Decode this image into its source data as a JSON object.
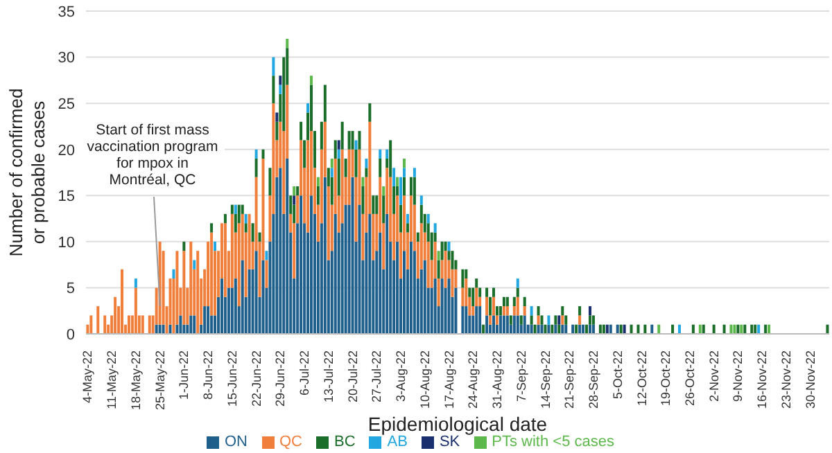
{
  "chart_data": {
    "type": "bar",
    "stacked": true,
    "xlabel": "Epidemiological date",
    "ylabel": "Number of confirmed or probable cases",
    "ylim": [
      0,
      35
    ],
    "yticks": [
      0,
      5,
      10,
      15,
      20,
      25,
      30,
      35
    ],
    "grid": "y",
    "legend": "bottom",
    "annotations": [
      {
        "text": "Start of first mass vaccination program for mpox in Montréal, QC",
        "x": "25-May-22",
        "y": 3
      }
    ],
    "categories": [
      "4-May-22",
      null,
      null,
      null,
      null,
      null,
      null,
      "11-May-22",
      null,
      null,
      null,
      null,
      null,
      null,
      "18-May-22",
      null,
      null,
      null,
      null,
      null,
      null,
      "25-May-22",
      null,
      null,
      null,
      null,
      null,
      null,
      "1-Jun-22",
      null,
      null,
      null,
      null,
      null,
      null,
      "8-Jun-22",
      null,
      null,
      null,
      null,
      null,
      null,
      "15-Jun-22",
      null,
      null,
      null,
      null,
      null,
      null,
      "22-Jun-22",
      null,
      null,
      null,
      null,
      null,
      null,
      "29-Jun-22",
      null,
      null,
      null,
      null,
      null,
      null,
      "6-Jul-22",
      null,
      null,
      null,
      null,
      null,
      null,
      "13-Jul-22",
      null,
      null,
      null,
      null,
      null,
      null,
      "20-Jul-22",
      null,
      null,
      null,
      null,
      null,
      null,
      "27-Jul-22",
      null,
      null,
      null,
      null,
      null,
      null,
      "3-Aug-22",
      null,
      null,
      null,
      null,
      null,
      null,
      "10-Aug-22",
      null,
      null,
      null,
      null,
      null,
      null,
      "17-Aug-22",
      null,
      null,
      null,
      null,
      null,
      null,
      "24-Aug-22",
      null,
      null,
      null,
      null,
      null,
      null,
      "31-Aug-22",
      null,
      null,
      null,
      null,
      null,
      null,
      "7-Sep-22",
      null,
      null,
      null,
      null,
      null,
      null,
      "14-Sep-22",
      null,
      null,
      null,
      null,
      null,
      null,
      "21-Sep-22",
      null,
      null,
      null,
      null,
      null,
      null,
      "28-Sep-22",
      null,
      null,
      null,
      null,
      null,
      null,
      "5-Oct-22",
      null,
      null,
      null,
      null,
      null,
      null,
      "12-Oct-22",
      null,
      null,
      null,
      null,
      null,
      null,
      "19-Oct-22",
      null,
      null,
      null,
      null,
      null,
      null,
      "26-Oct-22",
      null,
      null,
      null,
      null,
      null,
      null,
      "2-Nov-22",
      null,
      null,
      null,
      null,
      null,
      null,
      "9-Nov-22",
      null,
      null,
      null,
      null,
      null,
      null,
      "16-Nov-22",
      null,
      null,
      null,
      null,
      null,
      null,
      "23-Nov-22",
      null,
      null,
      null,
      null,
      null,
      null,
      "30-Nov-22",
      null,
      null,
      null,
      null,
      null
    ],
    "series": [
      {
        "name": "ON",
        "color": "#1f5f8b",
        "values": [
          0,
          0,
          0,
          0,
          0,
          0,
          0,
          0,
          0,
          0,
          0,
          0,
          0,
          0,
          0,
          0,
          0,
          0,
          0,
          0,
          1,
          1,
          1,
          0,
          1,
          0,
          1,
          2,
          1,
          1,
          2,
          2,
          0,
          1,
          3,
          3,
          2,
          2,
          4,
          6,
          4,
          5,
          5,
          6,
          3,
          8,
          4,
          7,
          7,
          9,
          4,
          8,
          5,
          10,
          13,
          17,
          18,
          13,
          19,
          11,
          6,
          12,
          15,
          12,
          11,
          15,
          13,
          10,
          12,
          17,
          8,
          9,
          13,
          11,
          12,
          14,
          14,
          17,
          10,
          14,
          8,
          11,
          13,
          8,
          9,
          11,
          7,
          13,
          10,
          8,
          10,
          6,
          9,
          7,
          10,
          9,
          6,
          7,
          8,
          5,
          5,
          6,
          3,
          6,
          5,
          6,
          4,
          5,
          0,
          3,
          3,
          2,
          2,
          3,
          3,
          0,
          2,
          1,
          2,
          1,
          2,
          2,
          2,
          1,
          2,
          2,
          1,
          2,
          1,
          1,
          0,
          1,
          1,
          0,
          1,
          0,
          1,
          0,
          1,
          1,
          0,
          1,
          0,
          1,
          1,
          0,
          1,
          1,
          0,
          0,
          0,
          0,
          1,
          0,
          1,
          0,
          0,
          0,
          0,
          0,
          0,
          0,
          0,
          0,
          1,
          0,
          0,
          0,
          0,
          0,
          0,
          0,
          0,
          0,
          0,
          0,
          0,
          0,
          0,
          0,
          0,
          0,
          0,
          0,
          0,
          0,
          0,
          0,
          0,
          0,
          0,
          0,
          0,
          0,
          0,
          0,
          0,
          0,
          0,
          0,
          0,
          0,
          0,
          0,
          0,
          0,
          0,
          0,
          0,
          0,
          0,
          0,
          0,
          0,
          0,
          0
        ]
      },
      {
        "name": "QC",
        "color": "#f07f3c",
        "values": [
          1,
          2,
          0,
          3,
          0,
          2,
          1,
          2,
          4,
          3,
          7,
          1,
          2,
          2,
          5,
          2,
          2,
          0,
          2,
          2,
          4,
          9,
          8,
          3,
          5,
          6,
          8,
          3,
          8,
          4,
          8,
          5,
          9,
          5,
          4,
          7,
          9,
          7,
          5,
          6,
          8,
          4,
          8,
          5,
          9,
          5,
          7,
          6,
          3,
          8,
          6,
          11,
          3,
          5,
          12,
          4,
          5,
          9,
          8,
          2,
          6,
          3,
          6,
          6,
          10,
          7,
          5,
          4,
          8,
          6,
          8,
          5,
          6,
          4,
          8,
          3,
          6,
          3,
          7,
          6,
          5,
          6,
          10,
          5,
          4,
          6,
          5,
          5,
          7,
          5,
          5,
          5,
          6,
          4,
          5,
          5,
          4,
          5,
          3,
          5,
          3,
          4,
          3,
          2,
          4,
          2,
          3,
          2,
          0,
          2,
          3,
          2,
          1,
          2,
          1,
          0,
          2,
          1,
          2,
          1,
          0,
          1,
          1,
          0,
          1,
          2,
          0,
          1,
          0,
          0,
          0,
          1,
          0,
          0,
          0,
          0,
          0,
          0,
          1,
          0,
          0,
          0,
          0,
          1,
          0,
          0,
          0,
          0,
          0,
          0,
          0,
          0,
          0,
          0,
          0,
          0,
          0,
          0,
          0,
          0,
          0,
          0,
          0,
          0,
          0,
          0,
          0,
          0,
          0,
          0,
          0,
          0,
          0,
          0,
          0,
          0,
          0,
          0,
          0,
          0,
          0,
          0,
          0,
          0,
          0,
          0,
          0,
          0,
          0,
          0,
          0,
          0,
          0,
          0,
          0,
          0,
          0,
          0,
          0,
          0,
          0,
          0,
          0,
          0,
          0,
          0,
          0,
          0,
          0,
          0,
          0,
          0,
          0,
          0,
          0,
          0
        ]
      },
      {
        "name": "BC",
        "color": "#1a6e2a",
        "values": [
          0,
          0,
          0,
          0,
          0,
          0,
          0,
          0,
          0,
          0,
          0,
          0,
          0,
          0,
          0,
          0,
          0,
          0,
          0,
          0,
          0,
          0,
          0,
          0,
          0,
          0,
          0,
          0,
          1,
          0,
          0,
          0,
          0,
          0,
          0,
          0,
          1,
          0,
          0,
          0,
          1,
          0,
          1,
          2,
          2,
          1,
          1,
          0,
          2,
          2,
          1,
          1,
          0,
          3,
          3,
          2,
          3,
          8,
          4,
          2,
          2,
          1,
          2,
          3,
          3,
          5,
          4,
          2,
          3,
          4,
          2,
          3,
          2,
          4,
          3,
          2,
          2,
          2,
          3,
          2,
          3,
          1,
          2,
          2,
          2,
          2,
          3,
          1,
          4,
          3,
          1,
          3,
          2,
          1,
          2,
          3,
          1,
          2,
          2,
          2,
          3,
          1,
          2,
          2,
          1,
          1,
          2,
          1,
          0,
          2,
          1,
          1,
          2,
          1,
          1,
          1,
          1,
          2,
          1,
          1,
          1,
          1,
          1,
          1,
          1,
          1,
          1,
          1,
          0,
          1,
          1,
          1,
          1,
          1,
          0,
          1,
          1,
          1,
          1,
          1,
          0,
          0,
          1,
          1,
          0,
          1,
          1,
          1,
          0,
          1,
          1,
          0,
          0,
          0,
          0,
          1,
          0,
          0,
          1,
          0,
          1,
          0,
          1,
          0,
          0,
          0,
          0,
          0,
          0,
          0,
          1,
          0,
          0,
          0,
          0,
          0,
          1,
          0,
          0,
          1,
          0,
          0,
          1,
          0,
          0,
          1,
          0,
          0,
          0,
          1,
          0,
          1,
          0,
          1,
          1,
          0,
          0,
          1,
          0,
          0,
          0,
          0,
          0,
          0,
          0,
          0,
          0,
          0,
          0,
          0,
          0,
          0,
          0,
          0,
          0,
          1
        ]
      },
      {
        "name": "AB",
        "color": "#22a7e0",
        "values": [
          0,
          0,
          0,
          0,
          0,
          0,
          0,
          0,
          0,
          0,
          0,
          0,
          0,
          0,
          1,
          0,
          0,
          0,
          0,
          0,
          0,
          0,
          0,
          0,
          0,
          1,
          0,
          0,
          0,
          0,
          0,
          1,
          0,
          0,
          0,
          0,
          0,
          1,
          0,
          0,
          0,
          0,
          0,
          1,
          0,
          0,
          1,
          0,
          0,
          1,
          0,
          0,
          1,
          0,
          2,
          0,
          1,
          0,
          0,
          0,
          0,
          0,
          0,
          0,
          1,
          0,
          0,
          0,
          0,
          0,
          0,
          1,
          0,
          1,
          0,
          0,
          0,
          0,
          1,
          0,
          0,
          1,
          0,
          0,
          0,
          1,
          0,
          1,
          0,
          2,
          0,
          3,
          1,
          1,
          0,
          1,
          0,
          1,
          0,
          1,
          0,
          1,
          0,
          0,
          0,
          1,
          0,
          0,
          0,
          0,
          0,
          0,
          0,
          0,
          0,
          0,
          0,
          0,
          0,
          0,
          0,
          0,
          0,
          0,
          0,
          1,
          0,
          0,
          0,
          1,
          0,
          0,
          0,
          0,
          1,
          0,
          0,
          0,
          0,
          0,
          0,
          0,
          0,
          0,
          0,
          0,
          0,
          0,
          0,
          0,
          0,
          0,
          0,
          0,
          0,
          0,
          0,
          0,
          0,
          0,
          0,
          0,
          0,
          0,
          0,
          0,
          0,
          0,
          0,
          0,
          0,
          0,
          1,
          0,
          0,
          0,
          0,
          0,
          0,
          0,
          0,
          0,
          0,
          0,
          0,
          0,
          0,
          0,
          0,
          0,
          0,
          0,
          0,
          0,
          0,
          1,
          0,
          0,
          0,
          0,
          0,
          0,
          0,
          0,
          0,
          0,
          0,
          0,
          0,
          0,
          0,
          0,
          0,
          0,
          0,
          0
        ]
      },
      {
        "name": "SK",
        "color": "#1a2f6e",
        "values": [
          0,
          0,
          0,
          0,
          0,
          0,
          0,
          0,
          0,
          0,
          0,
          0,
          0,
          0,
          0,
          0,
          0,
          0,
          0,
          0,
          0,
          0,
          0,
          0,
          0,
          0,
          0,
          0,
          0,
          0,
          0,
          0,
          0,
          0,
          0,
          0,
          0,
          0,
          0,
          0,
          0,
          0,
          0,
          0,
          0,
          0,
          0,
          0,
          0,
          0,
          0,
          0,
          0,
          0,
          0,
          1,
          1,
          0,
          0,
          0,
          1,
          0,
          0,
          0,
          0,
          0,
          0,
          0,
          0,
          0,
          0,
          0,
          0,
          1,
          0,
          0,
          0,
          0,
          0,
          0,
          0,
          0,
          0,
          0,
          0,
          0,
          0,
          0,
          0,
          0,
          0,
          0,
          0,
          0,
          0,
          0,
          0,
          0,
          0,
          0,
          0,
          0,
          0,
          0,
          0,
          0,
          0,
          0,
          0,
          0,
          0,
          0,
          0,
          0,
          0,
          0,
          0,
          0,
          0,
          0,
          0,
          0,
          0,
          0,
          0,
          0,
          0,
          0,
          0,
          0,
          0,
          0,
          0,
          0,
          0,
          0,
          0,
          1,
          0,
          0,
          0,
          0,
          0,
          0,
          0,
          0,
          1,
          0,
          0,
          0,
          0,
          1,
          0,
          0,
          0,
          0,
          1,
          0,
          0,
          0,
          0,
          0,
          0,
          0,
          0,
          0,
          0,
          0,
          0,
          0,
          0,
          0,
          0,
          0,
          0,
          0,
          0,
          0,
          0,
          0,
          0,
          0,
          0,
          0,
          0,
          0,
          0,
          0,
          0,
          0,
          0,
          0,
          0,
          0,
          0,
          0,
          0,
          0,
          0,
          0,
          0,
          0,
          0,
          0,
          0,
          0,
          0,
          0,
          0,
          0,
          0,
          0,
          0,
          0,
          0,
          0
        ]
      },
      {
        "name": "PTs with <5 cases",
        "color": "#5cb84a",
        "values": [
          0,
          0,
          0,
          0,
          0,
          0,
          0,
          0,
          0,
          0,
          0,
          0,
          0,
          0,
          0,
          0,
          0,
          0,
          0,
          0,
          0,
          0,
          0,
          0,
          0,
          0,
          0,
          0,
          0,
          0,
          0,
          0,
          0,
          0,
          0,
          0,
          0,
          0,
          0,
          0,
          0,
          0,
          0,
          0,
          0,
          0,
          0,
          0,
          0,
          0,
          0,
          0,
          0,
          0,
          0,
          0,
          0,
          0,
          1,
          0,
          1,
          0,
          0,
          0,
          0,
          1,
          0,
          1,
          0,
          0,
          0,
          1,
          0,
          0,
          0,
          0,
          0,
          0,
          0,
          0,
          1,
          0,
          0,
          0,
          0,
          0,
          1,
          0,
          0,
          0,
          1,
          0,
          1,
          0,
          0,
          0,
          0,
          0,
          0,
          0,
          0,
          0,
          1,
          0,
          0,
          0,
          0,
          0,
          0,
          0,
          0,
          0,
          0,
          0,
          0,
          0,
          0,
          0,
          0,
          0,
          0,
          0,
          0,
          0,
          0,
          0,
          0,
          0,
          0,
          0,
          0,
          0,
          0,
          0,
          0,
          0,
          0,
          0,
          0,
          0,
          0,
          0,
          0,
          0,
          0,
          0,
          0,
          0,
          0,
          0,
          0,
          0,
          0,
          0,
          0,
          0,
          0,
          0,
          0,
          0,
          0,
          0,
          0,
          0,
          0,
          0,
          1,
          0,
          0,
          0,
          0,
          0,
          0,
          0,
          0,
          0,
          0,
          0,
          1,
          0,
          0,
          0,
          0,
          0,
          0,
          0,
          0,
          1,
          1,
          0,
          1,
          0,
          0,
          0,
          0,
          0,
          0,
          0,
          1,
          0,
          0,
          0,
          0,
          0,
          0,
          0,
          0,
          0,
          0,
          0,
          0,
          0,
          0,
          0,
          0,
          0
        ]
      }
    ]
  }
}
